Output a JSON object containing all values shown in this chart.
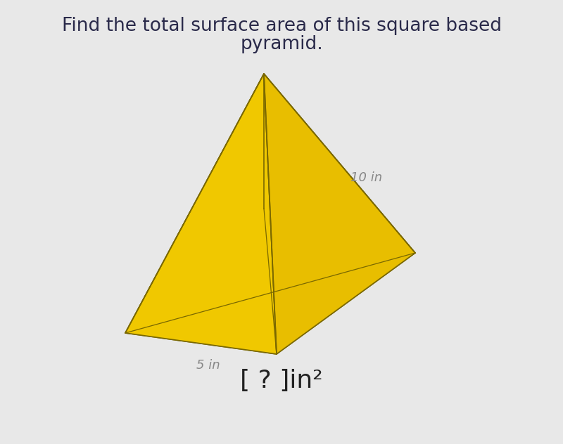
{
  "title_line1": "Find the total surface area of this square based",
  "title_line2": "pyramid.",
  "label_slant": "10 in",
  "label_base": "5 in",
  "answer_text": "[ ? ]in²",
  "bg_color": "#e8e8e8",
  "pyramid_fill_front": "#f0c800",
  "pyramid_fill_right": "#e8be00",
  "pyramid_fill_left": "#ddb800",
  "pyramid_fill_base": "#e0b800",
  "pyramid_edge": "#7a6800",
  "title_color": "#2a2a4a",
  "label_color": "#888888",
  "answer_color": "#222222",
  "title_fontsize": 19,
  "label_fontsize": 13,
  "answer_fontsize": 26
}
